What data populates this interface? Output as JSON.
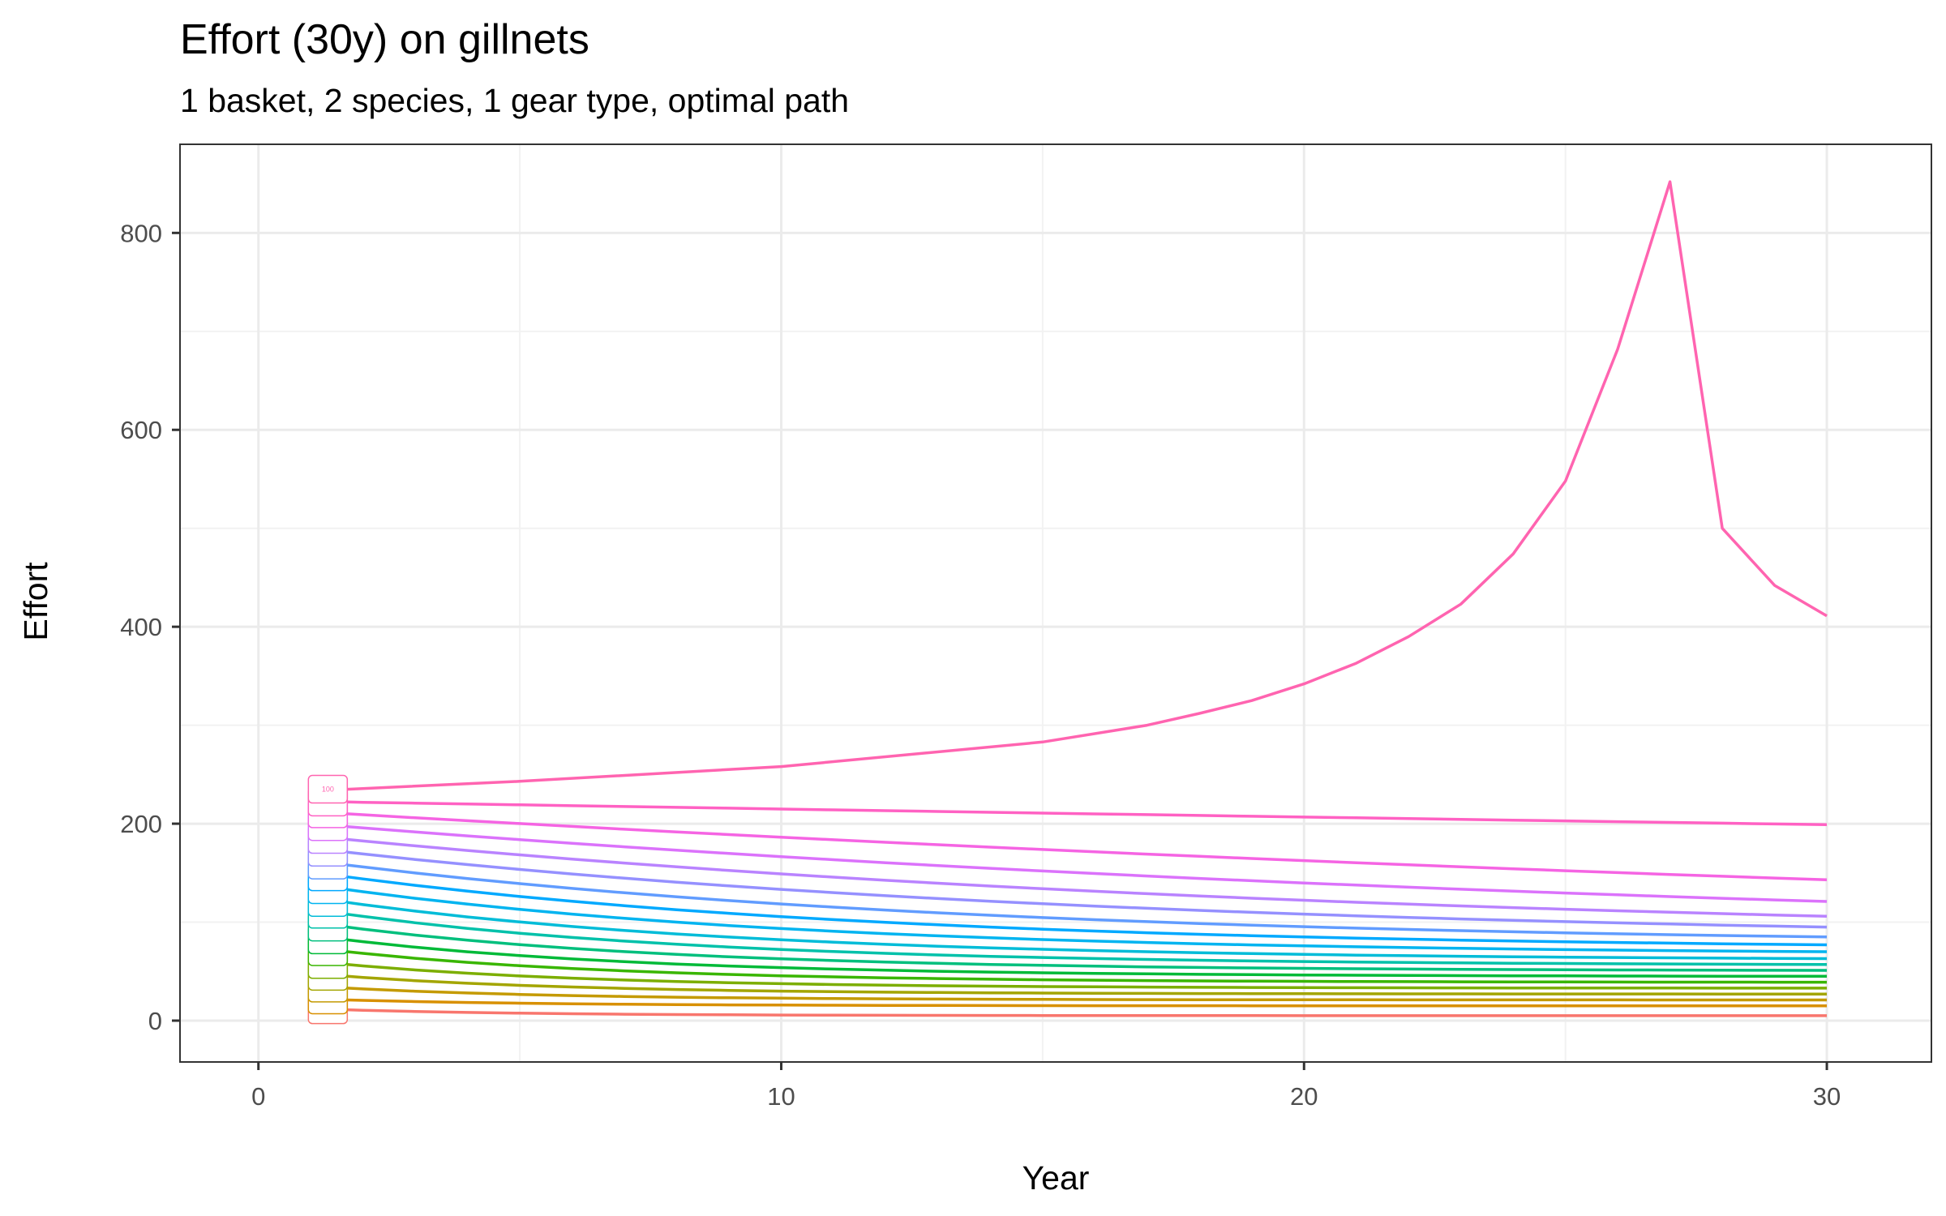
{
  "chart_data": {
    "type": "line",
    "title": "Effort (30y) on gillnets",
    "subtitle": "1 basket, 2 species, 1 gear type, optimal path",
    "xlabel": "Year",
    "ylabel": "Effort",
    "xlim": [
      -1.5,
      32
    ],
    "ylim": [
      -42,
      890
    ],
    "x_ticks": [
      0,
      10,
      20,
      30
    ],
    "y_ticks": [
      0,
      200,
      400,
      600,
      800
    ],
    "x_minor_ticks": [
      5,
      15,
      25
    ],
    "y_minor_ticks": [
      100,
      300,
      500,
      700
    ],
    "grid": true,
    "legend": "none",
    "label_box_text": "100",
    "x_start": 1.7,
    "x_end": 30,
    "top_series": {
      "x": [
        1.7,
        5,
        10,
        15,
        17,
        18,
        19,
        20,
        21,
        22,
        23,
        24,
        25,
        26,
        27,
        28,
        29,
        30
      ],
      "y": [
        235,
        243,
        258,
        283,
        300,
        312,
        325,
        342,
        363,
        390,
        423,
        474,
        548,
        682,
        852,
        500,
        442,
        411
      ]
    },
    "curves": [
      {
        "start": 222,
        "end": 199,
        "k": 0.005,
        "color": "#FF61C3"
      },
      {
        "start": 210,
        "end": 143,
        "k": 0.02,
        "color": "#F564E3"
      },
      {
        "start": 197,
        "end": 121,
        "k": 0.035,
        "color": "#DB72FB"
      },
      {
        "start": 184,
        "end": 106,
        "k": 0.05,
        "color": "#B983FF"
      },
      {
        "start": 171,
        "end": 95,
        "k": 0.065,
        "color": "#9590FF"
      },
      {
        "start": 158,
        "end": 85,
        "k": 0.08,
        "color": "#619CFF"
      },
      {
        "start": 146,
        "end": 77,
        "k": 0.095,
        "color": "#00A9FF"
      },
      {
        "start": 133,
        "end": 70,
        "k": 0.11,
        "color": "#00B4F0"
      },
      {
        "start": 120,
        "end": 63,
        "k": 0.125,
        "color": "#00BCD8"
      },
      {
        "start": 108,
        "end": 57,
        "k": 0.14,
        "color": "#00C1AA"
      },
      {
        "start": 95,
        "end": 51,
        "k": 0.155,
        "color": "#00BF7D"
      },
      {
        "start": 82,
        "end": 45,
        "k": 0.17,
        "color": "#00BA38"
      },
      {
        "start": 70,
        "end": 39,
        "k": 0.185,
        "color": "#39B600"
      },
      {
        "start": 57,
        "end": 33,
        "k": 0.2,
        "color": "#7CAE00"
      },
      {
        "start": 45,
        "end": 27,
        "k": 0.215,
        "color": "#A3A500"
      },
      {
        "start": 33,
        "end": 21,
        "k": 0.23,
        "color": "#C49A00"
      },
      {
        "start": 21,
        "end": 15,
        "k": 0.245,
        "color": "#D89000"
      },
      {
        "start": 11,
        "end": 5,
        "k": 0.26,
        "color": "#F8766D"
      }
    ],
    "top_color": "#FF64B0",
    "panel_border_color": "#333333",
    "grid_major_color": "#ebebeb",
    "grid_minor_color": "#f2f2f2"
  }
}
